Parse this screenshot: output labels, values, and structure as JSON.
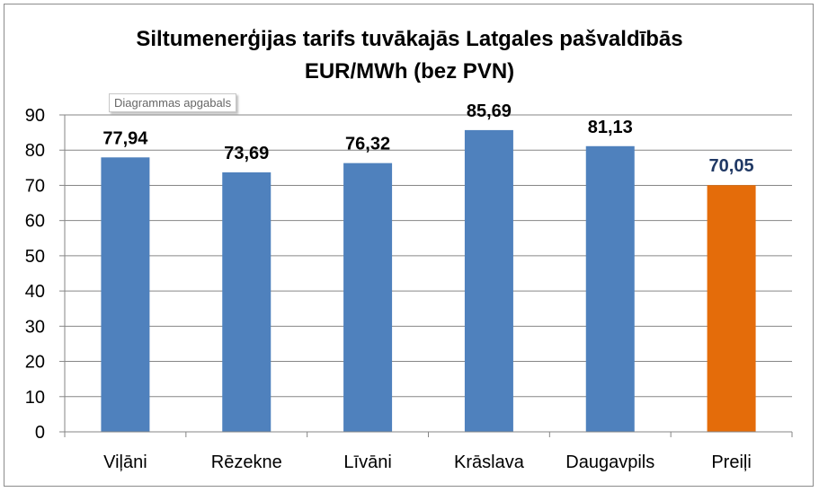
{
  "chart_data": {
    "type": "bar",
    "title": [
      "Siltumenerģijas tarifs tuvākajās Latgales pašvaldībās",
      "EUR/MWh (bez PVN)"
    ],
    "categories": [
      "Viļāni",
      "Rēzekne",
      "Līvāni",
      "Krāslava",
      "Daugavpils",
      "Preiļi"
    ],
    "values": [
      77.94,
      73.69,
      76.32,
      85.69,
      81.13,
      70.05
    ],
    "value_labels": [
      "77,94",
      "73,69",
      "76,32",
      "85,69",
      "81,13",
      "70,05"
    ],
    "y_ticks": [
      0,
      10,
      20,
      30,
      40,
      50,
      60,
      70,
      80,
      90
    ],
    "ylim": [
      0,
      90
    ],
    "grid": true,
    "legend": "none",
    "colors": {
      "default_bar": "#4f81bd",
      "highlight_bar": "#e46c0a",
      "highlight_label": "#1f3864",
      "default_label": "#000000",
      "gridline": "#868686"
    },
    "highlight_index": 5
  },
  "tooltip": "Diagrammas apgabals"
}
